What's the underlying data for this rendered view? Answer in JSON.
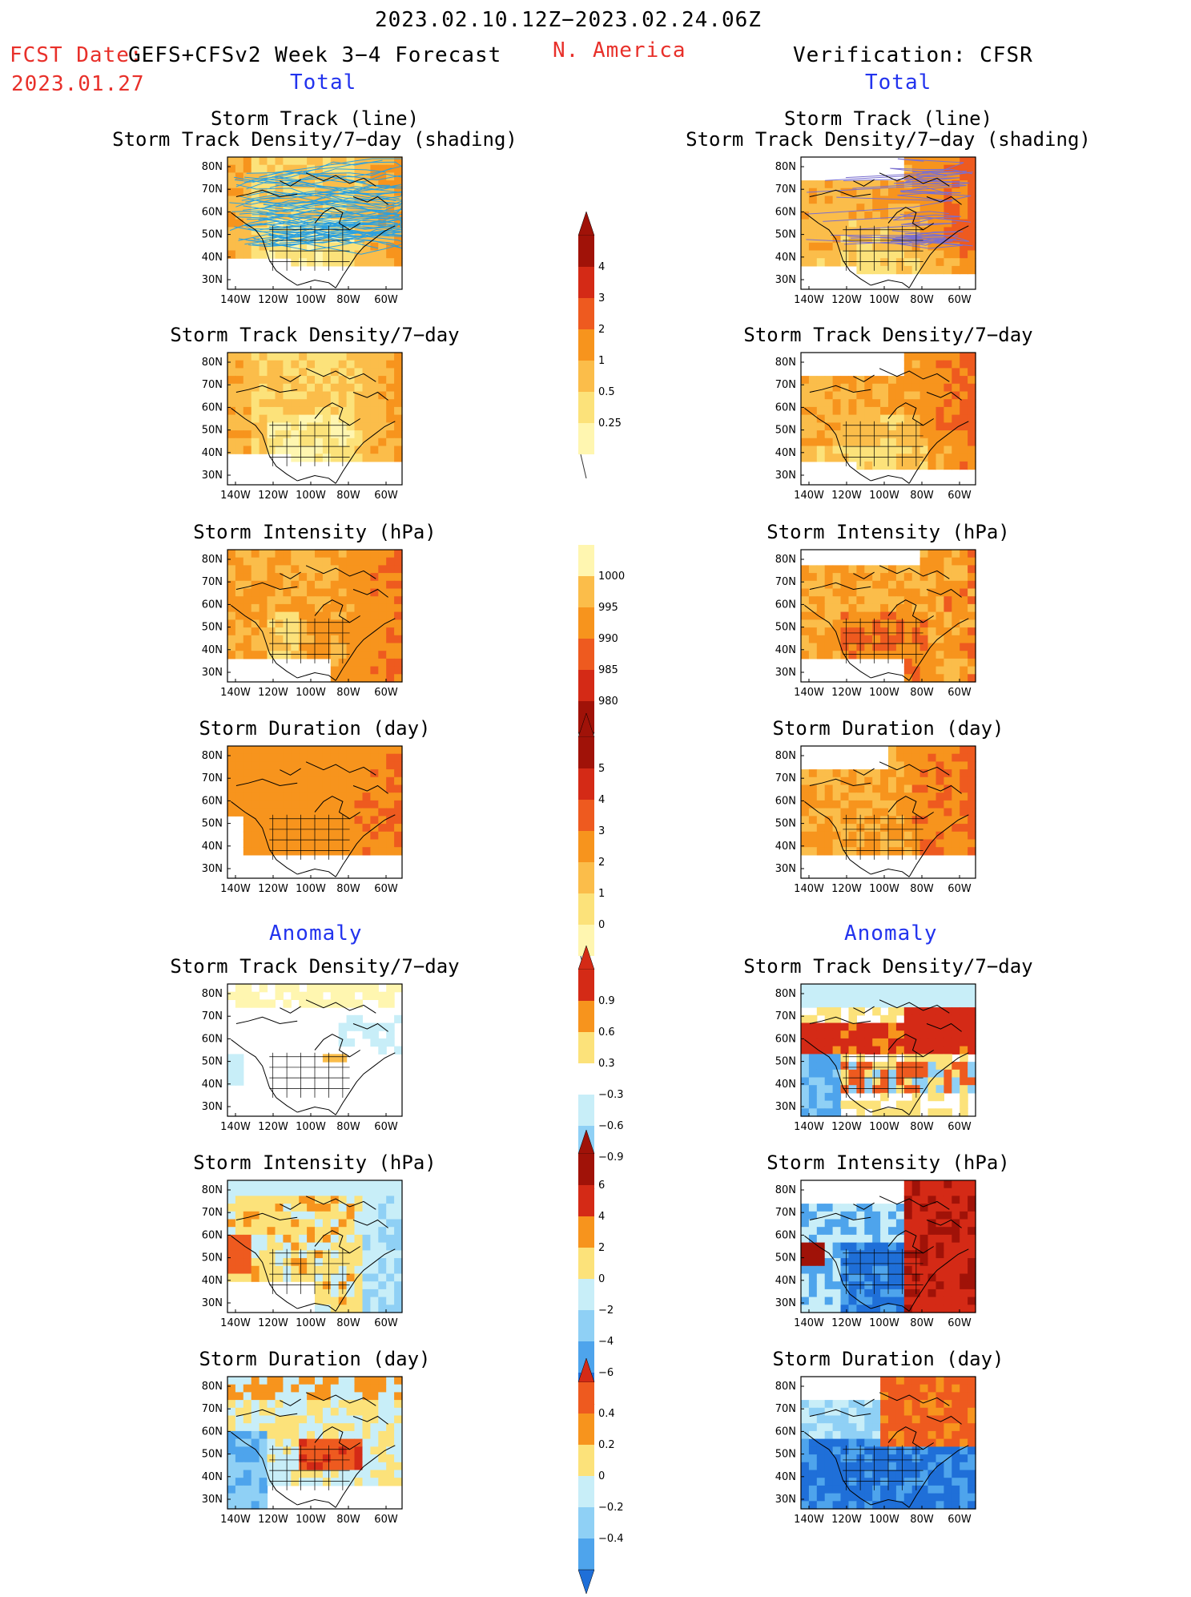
{
  "header": {
    "date_range": "2023.02.10.12Z−2023.02.24.06Z",
    "fcst_label": "FCST Date:",
    "fcst_model": "GEFS+CFSv2 Week 3−4 Forecast",
    "fcst_date": "2023.01.27",
    "region": "N. America",
    "verification": "Verification: CFSR"
  },
  "sections": {
    "total": "Total",
    "anomaly": "Anomaly"
  },
  "panel_titles": {
    "track_line": "Storm Track (line)",
    "track_shading": "Storm Track Density/7−day (shading)",
    "density": "Storm Track Density/7−day",
    "intensity": "Storm Intensity (hPa)",
    "duration": "Storm Duration (day)"
  },
  "axes": {
    "lat_labels": [
      "80N",
      "70N",
      "60N",
      "50N",
      "40N",
      "30N"
    ],
    "lon_labels": [
      "140W",
      "120W",
      "100W",
      "80W",
      "60W"
    ]
  },
  "colorbars": {
    "density_total": [
      "4",
      "3",
      "2",
      "1",
      "0.5",
      "0.25"
    ],
    "intensity_total": [
      "1000",
      "995",
      "990",
      "985",
      "980"
    ],
    "duration_total": [
      "5",
      "4",
      "3",
      "2",
      "1",
      "0"
    ],
    "density_anom": [
      "0.9",
      "0.6",
      "0.3",
      "−0.3",
      "−0.6",
      "−0.9"
    ],
    "intensity_anom": [
      "6",
      "4",
      "2",
      "0",
      "−2",
      "−4",
      "−6"
    ],
    "duration_anom": [
      "0.4",
      "0.2",
      "0",
      "−0.2",
      "−0.4"
    ]
  },
  "colors": {
    "title_red": "#e8302a",
    "section_blue": "#2233ee",
    "track_line": "#2aa0e0",
    "cfsr_track_line": "#7a6fd0",
    "pos_scale": [
      "#fff6b0",
      "#fce27a",
      "#fbbd4a",
      "#f7941d",
      "#ee5a1f",
      "#d42a16",
      "#a01208"
    ],
    "neg_scale": [
      "#c8eef8",
      "#8fd0f5",
      "#4ea4ec",
      "#1f6fd8"
    ]
  }
}
